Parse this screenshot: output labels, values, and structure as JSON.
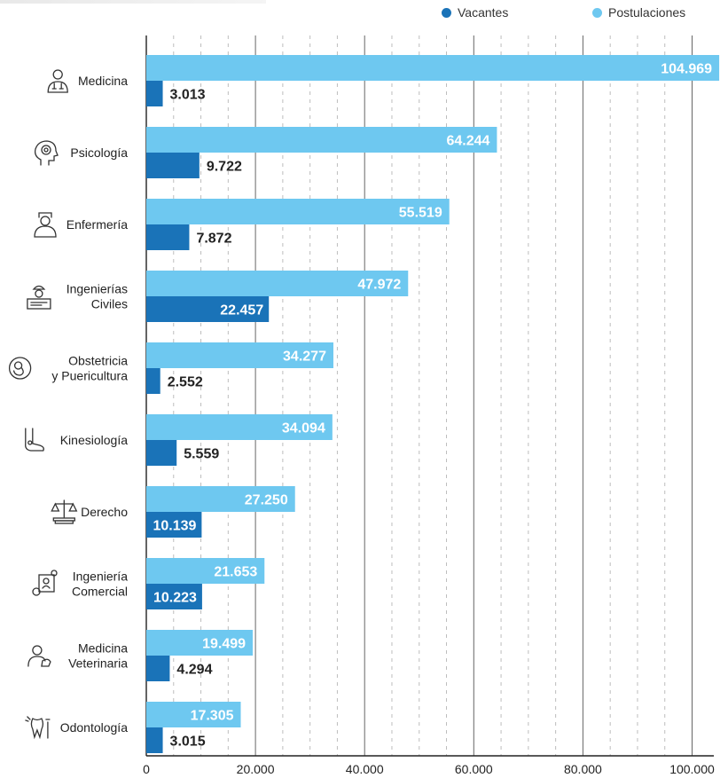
{
  "chart_data": {
    "type": "bar",
    "orientation": "horizontal",
    "title": "",
    "xlabel": "",
    "ylabel": "",
    "xlim": [
      0,
      100000
    ],
    "x_ticks": [
      0,
      20000,
      40000,
      60000,
      80000,
      100000
    ],
    "x_tick_labels": [
      "0",
      "20.000",
      "40.000",
      "60.000",
      "80.000",
      "100.000"
    ],
    "grid": "vertical dashed minor, solid major",
    "legend_position": "top-right",
    "categories": [
      {
        "label": [
          "Medicina"
        ],
        "icon": "doctor-icon"
      },
      {
        "label": [
          "Psicología"
        ],
        "icon": "head-mind-icon"
      },
      {
        "label": [
          "Enfermería"
        ],
        "icon": "nurse-icon"
      },
      {
        "label": [
          "Ingenierías",
          "Civiles"
        ],
        "icon": "engineer-icon"
      },
      {
        "label": [
          "Obstetricia",
          "y Puericultura"
        ],
        "icon": "fetus-icon"
      },
      {
        "label": [
          "Kinesiología"
        ],
        "icon": "foot-joint-icon"
      },
      {
        "label": [
          "Derecho"
        ],
        "icon": "scales-icon"
      },
      {
        "label": [
          "Ingeniería",
          "Comercial"
        ],
        "icon": "business-gear-icon"
      },
      {
        "label": [
          "Medicina",
          "Veterinaria"
        ],
        "icon": "vet-dog-icon"
      },
      {
        "label": [
          "Odontología"
        ],
        "icon": "tooth-icon"
      }
    ],
    "series": [
      {
        "name": "Postulaciones",
        "color": "#6ec8f0",
        "values": [
          104969,
          64244,
          55519,
          47972,
          34277,
          34094,
          27250,
          21653,
          19499,
          17305
        ],
        "labels": [
          "104.969",
          "64.244",
          "55.519",
          "47.972",
          "34.277",
          "34.094",
          "27.250",
          "21.653",
          "19.499",
          "17.305"
        ]
      },
      {
        "name": "Vacantes",
        "color": "#1a73b8",
        "values": [
          3013,
          9722,
          7872,
          22457,
          2552,
          5559,
          10139,
          10223,
          4294,
          3015
        ],
        "labels": [
          "3.013",
          "9.722",
          "7.872",
          "22.457",
          "2.552",
          "5.559",
          "10.139",
          "10.223",
          "4.294",
          "3.015"
        ]
      }
    ]
  }
}
